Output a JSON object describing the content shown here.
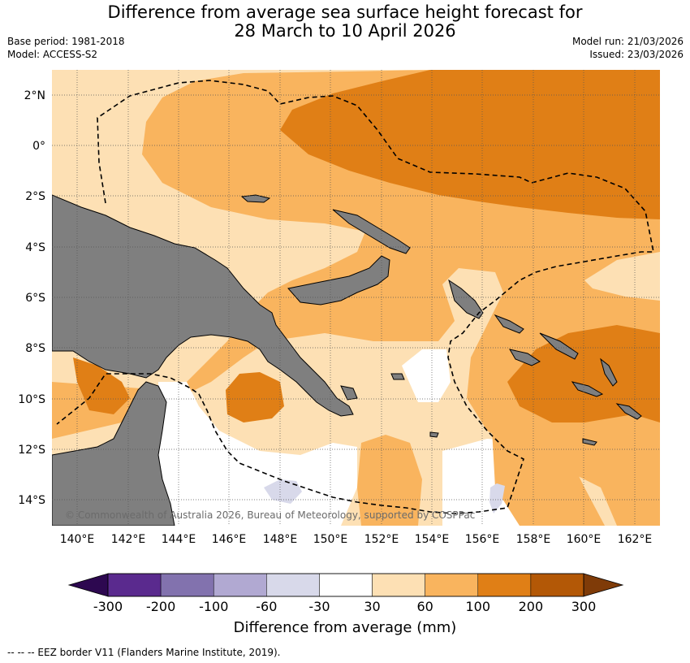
{
  "title_line1": "Difference from average sea surface height forecast for",
  "title_line2": "28 March to 10 April 2026",
  "base_period": "Base period: 1981-2018",
  "model": "Model: ACCESS-S2",
  "model_run": "Model run: 21/03/2026",
  "issued": "Issued: 23/03/2026",
  "copyright": "© Commonwealth of Australia 2026, Bureau of Meteorology, supported by COSPPac",
  "lat_labels": [
    "2°N",
    "0°",
    "2°S",
    "4°S",
    "6°S",
    "8°S",
    "10°S",
    "12°S",
    "14°S"
  ],
  "lon_labels": [
    "140°E",
    "142°E",
    "144°E",
    "146°E",
    "148°E",
    "150°E",
    "152°E",
    "154°E",
    "156°E",
    "158°E",
    "160°E",
    "162°E"
  ],
  "colorbar": {
    "title": "Difference from average (mm)",
    "ticks": [
      "-300",
      "-200",
      "-100",
      "-60",
      "-30",
      "30",
      "60",
      "100",
      "200",
      "300"
    ],
    "colors": [
      "#5a2a8e",
      "#8272ae",
      "#b1a9d2",
      "#d8d9ea",
      "#ffffff",
      "#fde0b4",
      "#f9b45e",
      "#e07f16",
      "#b35806"
    ],
    "under_color": "#2d0850",
    "over_color": "#7f3b08"
  },
  "footnote": "--  --  -- EEZ border V11 (Flanders Marine Institute, 2019)."
}
